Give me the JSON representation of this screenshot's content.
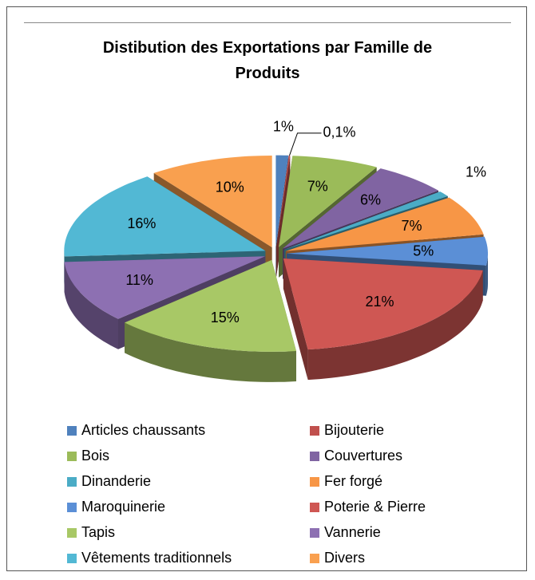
{
  "chart_data": {
    "type": "pie3d",
    "title": "Distibution des Exportations par Famille de Produits",
    "categories": [
      "Articles chaussants",
      "Bijouterie",
      "Bois",
      "Couvertures",
      "Dinanderie",
      "Fer forgé",
      "Maroquinerie",
      "Poterie & Pierre",
      "Tapis",
      "Vannerie",
      "Vêtements traditionnels",
      "Divers"
    ],
    "values": [
      1,
      0.1,
      7,
      6,
      1,
      7,
      5,
      21,
      15,
      11,
      16,
      10
    ],
    "value_labels": [
      "1%",
      "0,1%",
      "7%",
      "6%",
      "1%",
      "7%",
      "5%",
      "21%",
      "15%",
      "11%",
      "16%",
      "10%"
    ],
    "colors": [
      "#4f81bd",
      "#c0504d",
      "#9bbb59",
      "#8064a2",
      "#4bacc6",
      "#f79646",
      "#5b8fd6",
      "#cf5753",
      "#a8c866",
      "#8d70b2",
      "#52b8d4",
      "#f9a04f"
    ],
    "legend": "bottom"
  }
}
